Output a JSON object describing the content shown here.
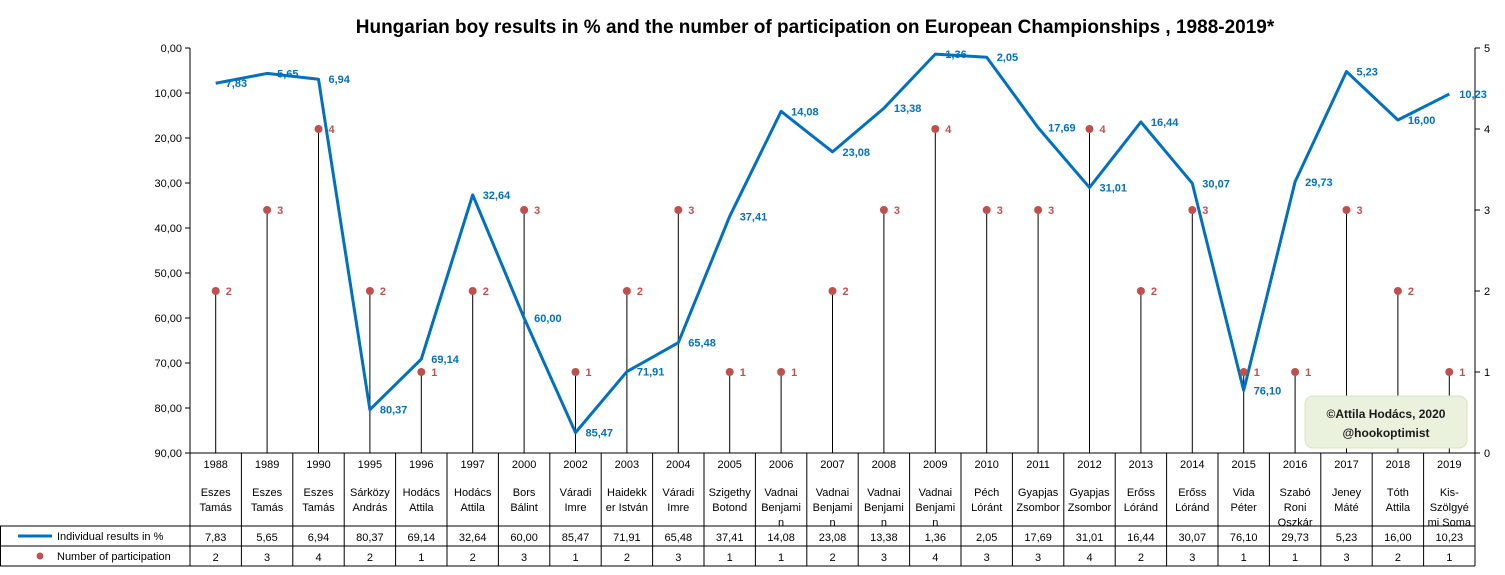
{
  "chart_data": {
    "type": "line",
    "title": "Hungarian boy results in % and the number of participation on European Championships , 1988-2019*",
    "categories": [
      "1988",
      "1989",
      "1990",
      "1995",
      "1996",
      "1997",
      "2000",
      "2002",
      "2003",
      "2004",
      "2005",
      "2006",
      "2007",
      "2008",
      "2009",
      "2010",
      "2011",
      "2012",
      "2013",
      "2014",
      "2015",
      "2016",
      "2017",
      "2018",
      "2019"
    ],
    "names": [
      [
        "Eszes",
        "Tamás"
      ],
      [
        "Eszes",
        "Tamás"
      ],
      [
        "Eszes",
        "Tamás"
      ],
      [
        "Sárközy",
        "András"
      ],
      [
        "Hodács",
        "Attila"
      ],
      [
        "Hodács",
        "Attila"
      ],
      [
        "Bors",
        "Bálint"
      ],
      [
        "Váradi",
        "Imre"
      ],
      [
        "Haidekk",
        "er István"
      ],
      [
        "Váradi",
        "Imre"
      ],
      [
        "Szigethy",
        "Botond"
      ],
      [
        "Vadnai",
        "Benjami",
        "n"
      ],
      [
        "Vadnai",
        "Benjami",
        "n"
      ],
      [
        "Vadnai",
        "Benjami",
        "n"
      ],
      [
        "Vadnai",
        "Benjami",
        "n"
      ],
      [
        "Péch",
        "Lóránt"
      ],
      [
        "Gyapjas",
        "Zsombor"
      ],
      [
        "Gyapjas",
        "Zsombor"
      ],
      [
        "Erőss",
        "Lóránd"
      ],
      [
        "Erőss",
        "Lóránd"
      ],
      [
        "Vida",
        "Péter"
      ],
      [
        "Szabó",
        "Roni",
        "Oszkár"
      ],
      [
        "Jeney",
        "Máté"
      ],
      [
        "Tóth",
        "Attila"
      ],
      [
        "Kis-",
        "Szölgyé",
        "mi Soma"
      ]
    ],
    "series": [
      {
        "name": "Individual results in %",
        "axis": "left",
        "color": "#0070c0",
        "values": [
          "7,83",
          "5,65",
          "6,94",
          "80,37",
          "69,14",
          "32,64",
          "60,00",
          "85,47",
          "71,91",
          "65,48",
          "37,41",
          "14,08",
          "23,08",
          "13,38",
          "1,36",
          "2,05",
          "17,69",
          "31,01",
          "16,44",
          "30,07",
          "76,10",
          "29,73",
          "5,23",
          "16,00",
          "10,23"
        ]
      },
      {
        "name": "Number of participation",
        "axis": "right",
        "color": "#c0504d",
        "values": [
          "2",
          "3",
          "4",
          "2",
          "1",
          "2",
          "3",
          "1",
          "2",
          "3",
          "1",
          "1",
          "2",
          "3",
          "4",
          "3",
          "3",
          "4",
          "2",
          "3",
          "1",
          "1",
          "3",
          "2",
          "1"
        ]
      }
    ],
    "left_axis": {
      "min": 0,
      "max": 90,
      "reversed": true,
      "ticks": [
        "0,00",
        "10,00",
        "20,00",
        "30,00",
        "40,00",
        "50,00",
        "60,00",
        "70,00",
        "80,00",
        "90,00"
      ]
    },
    "right_axis": {
      "min": 0,
      "max": 5,
      "ticks": [
        "0",
        "1",
        "2",
        "3",
        "4",
        "5"
      ]
    },
    "legend": "bottom data table",
    "grid": false
  },
  "copyright": {
    "line1": "©Attila Hodács, 2020",
    "line2": "@hookoptimist"
  }
}
